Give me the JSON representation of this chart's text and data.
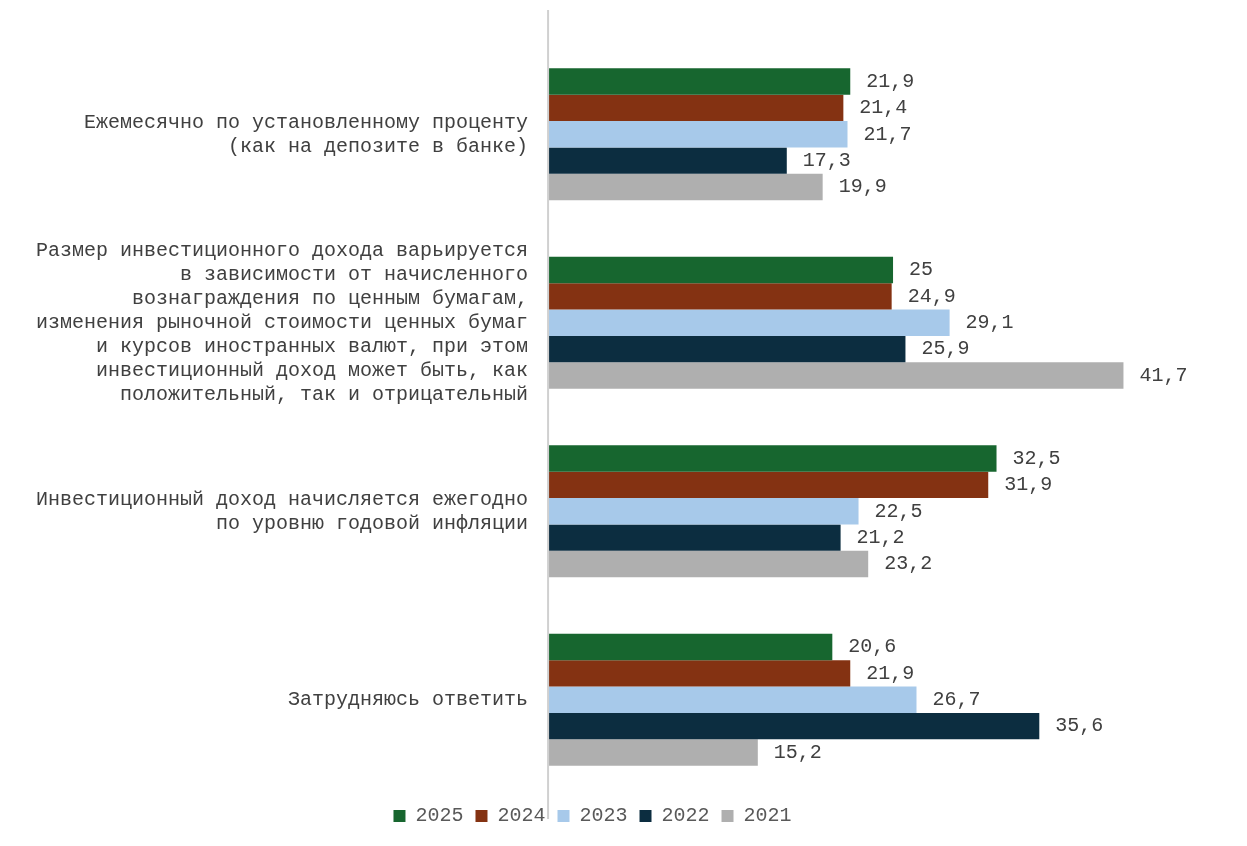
{
  "chart_data": {
    "type": "bar",
    "orientation": "horizontal",
    "categories": [
      "Ежемесячно по установленному проценту (как на депозите в банке)",
      "Размер инвестиционного дохода варьируется в зависимости от начисленного вознаграждения по ценным бумагам, изменения рыночной стоимости ценных бумаг и курсов иностранных валют, при этом инвестиционный доход может быть, как положительный, так и отрицательный",
      "Инвестиционный доход начисляется ежегодно по уровню годовой инфляции",
      "Затрудняюсь ответить"
    ],
    "series": [
      {
        "name": "2025",
        "color": "#17662f",
        "values": [
          21.9,
          25,
          32.5,
          20.6
        ],
        "value_labels": [
          "21,9",
          "25",
          "32,5",
          "20,6"
        ]
      },
      {
        "name": "2024",
        "color": "#843212",
        "values": [
          21.4,
          24.9,
          31.9,
          21.9
        ],
        "value_labels": [
          "21,4",
          "24,9",
          "31,9",
          "21,9"
        ]
      },
      {
        "name": "2023",
        "color": "#a7c9ea",
        "values": [
          21.7,
          29.1,
          22.5,
          26.7
        ],
        "value_labels": [
          "21,7",
          "29,1",
          "22,5",
          "26,7"
        ]
      },
      {
        "name": "2022",
        "color": "#0c2d40",
        "values": [
          17.3,
          25.9,
          21.2,
          35.6
        ],
        "value_labels": [
          "17,3",
          "25,9",
          "21,2",
          "35,6"
        ]
      },
      {
        "name": "2021",
        "color": "#afafaf",
        "values": [
          19.9,
          41.7,
          23.2,
          15.2
        ],
        "value_labels": [
          "19,9",
          "41,7",
          "23,2",
          "15,2"
        ]
      }
    ],
    "legend": "bottom"
  }
}
